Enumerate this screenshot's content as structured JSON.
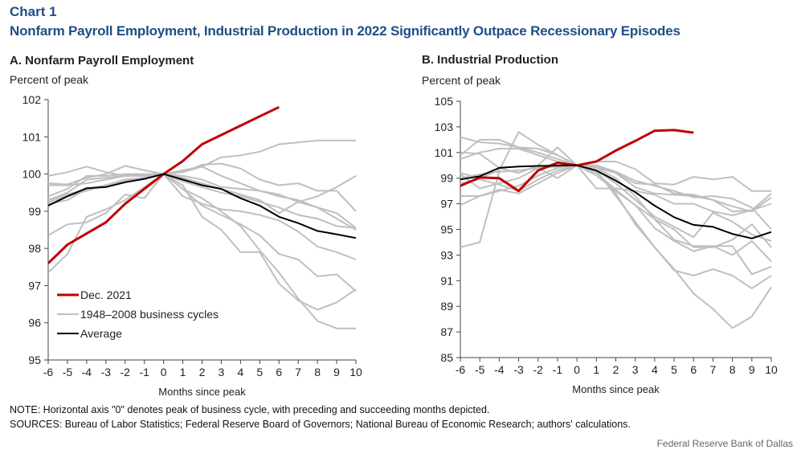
{
  "header": {
    "label": "Chart 1",
    "title": "Nonfarm Payroll Employment, Industrial Production in 2022 Significantly Outpace Recessionary Episodes"
  },
  "footer": {
    "note": "NOTE: Horizontal axis \"0\" denotes peak of business cycle, with preceding and succeeding months depicted.",
    "sources": "SOURCES: Bureau of Labor Statistics; Federal Reserve Board of Governors; National Bureau of Economic Research; authors' calculations.",
    "credit": "Federal Reserve Bank of Dallas"
  },
  "colors": {
    "current": "#c00000",
    "history": "#bfbfbf",
    "average": "#000000",
    "title": "#1f4e86"
  },
  "chart_data": [
    {
      "type": "line",
      "title": "A. Nonfarm Payroll Employment",
      "ylabel": "Percent of peak",
      "xlabel": "Months since peak",
      "x": [
        -6,
        -5,
        -4,
        -3,
        -2,
        -1,
        0,
        1,
        2,
        3,
        4,
        5,
        6,
        7,
        8,
        9,
        10
      ],
      "xticks": [
        "-6",
        "-5",
        "-4",
        "-3",
        "-2",
        "-1",
        "0",
        "1",
        "2",
        "3",
        "4",
        "5",
        "6",
        "7",
        "8",
        "9",
        "10"
      ],
      "ylim": [
        95,
        102
      ],
      "yticks": [
        95,
        96,
        97,
        98,
        99,
        100,
        101,
        102
      ],
      "legend": {
        "placement": "lower-left",
        "entries": [
          "Dec. 2021",
          "1948–2008 business cycles",
          "Average"
        ]
      },
      "series": [
        {
          "name": "Dec. 2021",
          "role": "current",
          "values": [
            97.6,
            98.1,
            98.4,
            98.7,
            99.2,
            99.6,
            100.0,
            100.35,
            100.8,
            101.05,
            101.3,
            101.55,
            101.8,
            null,
            null,
            null,
            null
          ]
        },
        {
          "name": "Average",
          "role": "average",
          "values": [
            99.15,
            99.4,
            99.62,
            99.65,
            99.78,
            99.87,
            100.0,
            99.85,
            99.7,
            99.6,
            99.35,
            99.15,
            98.85,
            98.68,
            98.47,
            98.38,
            98.28
          ]
        },
        {
          "name": "1948–2008 business cycles",
          "role": "history",
          "values": [
            99.95,
            100.05,
            100.2,
            100.05,
            99.95,
            99.98,
            100.0,
            100.1,
            100.2,
            100.45,
            100.5,
            100.6,
            100.8,
            100.85,
            100.9,
            100.9,
            100.9
          ]
        },
        {
          "name": "1948–2008 business cycles",
          "role": "history",
          "values": [
            99.75,
            99.72,
            99.9,
            100.0,
            100.22,
            100.1,
            100.0,
            100.05,
            100.25,
            100.28,
            100.15,
            99.85,
            99.7,
            99.75,
            99.55,
            99.55,
            99.0
          ]
        },
        {
          "name": "1948–2008 business cycles",
          "role": "history",
          "values": [
            99.7,
            99.7,
            99.75,
            99.85,
            99.95,
            99.98,
            100.0,
            100.05,
            100.2,
            99.95,
            99.75,
            99.55,
            99.45,
            99.25,
            99.1,
            98.95,
            98.55
          ]
        },
        {
          "name": "1948–2008 business cycles",
          "role": "history",
          "values": [
            99.4,
            99.6,
            99.95,
            99.95,
            100.0,
            100.0,
            100.0,
            99.95,
            99.85,
            99.65,
            99.6,
            99.55,
            99.4,
            99.3,
            99.1,
            98.8,
            98.5
          ]
        },
        {
          "name": "1948–2008 business cycles",
          "role": "history",
          "values": [
            99.3,
            99.5,
            99.85,
            99.9,
            99.95,
            99.95,
            100.0,
            99.9,
            99.75,
            99.6,
            99.45,
            99.3,
            98.95,
            99.25,
            99.4,
            99.65,
            99.95
          ]
        },
        {
          "name": "1948–2008 business cycles",
          "role": "history",
          "values": [
            99.25,
            99.4,
            99.55,
            99.7,
            99.8,
            99.9,
            100.0,
            99.8,
            99.65,
            99.5,
            99.4,
            99.25,
            99.1,
            98.9,
            98.8,
            98.6,
            98.55
          ]
        },
        {
          "name": "1948–2008 business cycles",
          "role": "history",
          "values": [
            98.35,
            98.65,
            98.7,
            98.95,
            99.45,
            99.35,
            100.0,
            99.4,
            99.2,
            99.05,
            99.0,
            98.9,
            98.75,
            98.45,
            98.05,
            97.9,
            97.7
          ]
        },
        {
          "name": "1948–2008 business cycles",
          "role": "history",
          "values": [
            97.35,
            97.85,
            98.85,
            99.05,
            99.3,
            99.65,
            100.0,
            99.6,
            99.15,
            98.9,
            98.65,
            98.35,
            97.85,
            97.7,
            97.25,
            97.3,
            96.85
          ]
        },
        {
          "name": "1948–2008 business cycles",
          "role": "history",
          "values": [
            99.2,
            99.3,
            99.6,
            99.7,
            99.8,
            99.9,
            100.0,
            99.7,
            98.85,
            98.5,
            97.9,
            97.9,
            97.05,
            96.6,
            96.35,
            96.55,
            96.9
          ]
        },
        {
          "name": "1948–2008 business cycles",
          "role": "history",
          "values": [
            99.3,
            99.45,
            99.6,
            99.7,
            99.85,
            99.9,
            100.0,
            99.6,
            99.35,
            99.0,
            98.6,
            97.95,
            97.35,
            96.65,
            96.05,
            95.85,
            95.85
          ]
        }
      ]
    },
    {
      "type": "line",
      "title": "B. Industrial Production",
      "ylabel": "Percent of peak",
      "xlabel": "Months since peak",
      "x": [
        -6,
        -5,
        -4,
        -3,
        -2,
        -1,
        0,
        1,
        2,
        3,
        4,
        5,
        6,
        7,
        8,
        9,
        10
      ],
      "xticks": [
        "-6",
        "-5",
        "-4",
        "-3",
        "-2",
        "-1",
        "0",
        "1",
        "2",
        "3",
        "4",
        "5",
        "6",
        "7",
        "8",
        "9",
        "10"
      ],
      "ylim": [
        85,
        105
      ],
      "yticks": [
        85,
        87,
        89,
        91,
        93,
        95,
        97,
        99,
        101,
        103,
        105
      ],
      "series": [
        {
          "name": "Dec. 2021",
          "role": "current",
          "values": [
            98.4,
            99.05,
            99.0,
            98.0,
            99.6,
            100.2,
            100.0,
            100.3,
            101.15,
            101.9,
            102.7,
            102.75,
            102.55,
            null,
            null,
            null,
            null
          ]
        },
        {
          "name": "Average",
          "role": "average",
          "values": [
            98.9,
            99.15,
            99.8,
            99.9,
            99.95,
            99.98,
            100.0,
            99.6,
            98.8,
            97.9,
            96.85,
            95.95,
            95.35,
            95.2,
            94.65,
            94.3,
            94.8
          ]
        },
        {
          "name": "1948–2008 business cycles",
          "role": "history",
          "values": [
            102.2,
            101.8,
            101.7,
            101.4,
            101.0,
            100.5,
            100.0,
            100.3,
            100.3,
            99.7,
            98.6,
            98.5,
            99.1,
            98.9,
            99.1,
            98.0,
            98.0
          ]
        },
        {
          "name": "1948–2008 business cycles",
          "role": "history",
          "values": [
            100.8,
            102.0,
            102.0,
            101.4,
            101.3,
            100.8,
            100.0,
            100.0,
            99.5,
            98.8,
            98.4,
            98.0,
            97.5,
            97.6,
            97.4,
            96.7,
            95.0
          ]
        },
        {
          "name": "1948–2008 business cycles",
          "role": "history",
          "values": [
            100.5,
            101.0,
            101.3,
            101.3,
            100.8,
            100.3,
            100.0,
            99.9,
            99.4,
            98.6,
            98.5,
            97.8,
            97.7,
            97.3,
            96.8,
            96.4,
            97.5
          ]
        },
        {
          "name": "1948–2008 business cycles",
          "role": "history",
          "values": [
            99.4,
            99.0,
            99.6,
            102.6,
            101.6,
            100.8,
            100.0,
            99.8,
            99.4,
            98.3,
            97.8,
            97.7,
            97.6,
            97.3,
            96.4,
            96.5,
            97.0
          ]
        },
        {
          "name": "1948–2008 business cycles",
          "role": "history",
          "values": [
            101.0,
            100.9,
            99.8,
            99.4,
            100.0,
            101.4,
            100.0,
            98.2,
            98.2,
            98.0,
            97.7,
            97.0,
            97.0,
            96.4,
            96.1,
            96.5,
            97.8
          ]
        },
        {
          "name": "1948–2008 business cycles",
          "role": "history",
          "values": [
            99.3,
            98.2,
            98.6,
            99.0,
            99.8,
            99.0,
            100.0,
            99.6,
            98.6,
            97.3,
            96.0,
            95.2,
            94.4,
            96.3,
            95.6,
            94.6,
            94.1
          ]
        },
        {
          "name": "1948–2008 business cycles",
          "role": "history",
          "values": [
            98.6,
            98.9,
            98.5,
            98.0,
            98.9,
            99.6,
            100.0,
            99.2,
            98.0,
            96.9,
            95.8,
            95.0,
            93.6,
            93.6,
            94.2,
            95.4,
            93.6
          ]
        },
        {
          "name": "1948–2008 business cycles",
          "role": "history",
          "values": [
            97.6,
            97.6,
            98.1,
            97.8,
            98.6,
            99.4,
            100.0,
            99.4,
            98.1,
            96.9,
            95.1,
            94.1,
            93.3,
            93.7,
            93.0,
            94.1,
            92.5
          ]
        },
        {
          "name": "1948–2008 business cycles",
          "role": "history",
          "values": [
            96.9,
            97.6,
            98.0,
            98.4,
            99.2,
            99.8,
            100.0,
            99.6,
            97.6,
            95.6,
            93.6,
            91.8,
            91.4,
            91.9,
            91.4,
            90.4,
            91.4
          ]
        },
        {
          "name": "1948–2008 business cycles",
          "role": "history",
          "values": [
            93.6,
            94.0,
            99.5,
            99.6,
            99.8,
            99.9,
            100.0,
            99.8,
            99.0,
            97.6,
            95.8,
            94.2,
            93.7,
            93.7,
            93.7,
            91.5,
            92.1
          ]
        },
        {
          "name": "1948–2008 business cycles",
          "role": "history",
          "values": [
            99.0,
            99.3,
            99.5,
            99.6,
            99.8,
            99.9,
            100.0,
            99.5,
            97.8,
            95.4,
            93.6,
            91.9,
            90.0,
            88.8,
            87.3,
            88.2,
            90.5
          ]
        }
      ]
    }
  ]
}
